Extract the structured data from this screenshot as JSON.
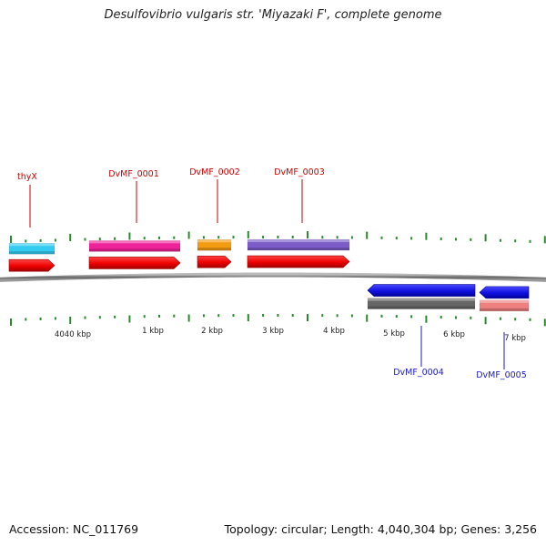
{
  "title": "Desulfovibrio vulgaris str. 'Miyazaki F', complete genome",
  "footer": {
    "accession": "Accession: NC_011769",
    "summary": "Topology: circular; Length: 4,040,304 bp; Genes: 3,256"
  },
  "scale": {
    "start_label": "4040 kbp",
    "ticks": [
      {
        "label": "1 kbp"
      },
      {
        "label": "2 kbp"
      },
      {
        "label": "3 kbp"
      },
      {
        "label": "4 kbp"
      },
      {
        "label": "5 kbp"
      },
      {
        "label": "6 kbp"
      },
      {
        "label": "7 kbp"
      }
    ]
  },
  "genes": [
    {
      "name": "thyX",
      "strand": "+",
      "label_color": "#cc0000",
      "track_color": "#33ccf0"
    },
    {
      "name": "DvMF_0001",
      "strand": "+",
      "label_color": "#cc0000",
      "track_color": "#ee2299"
    },
    {
      "name": "DvMF_0002",
      "strand": "+",
      "label_color": "#cc0000",
      "track_color": "#f39c12"
    },
    {
      "name": "DvMF_0003",
      "strand": "+",
      "label_color": "#cc0000",
      "track_color": "#7c5cc8"
    },
    {
      "name": "DvMF_0004",
      "strand": "-",
      "label_color": "#1a1acc",
      "track_color": "#666666"
    },
    {
      "name": "DvMF_0005",
      "strand": "-",
      "label_color": "#1a1acc",
      "track_color": "#ee8080"
    }
  ],
  "colors": {
    "forward_gene": "#ee1111",
    "reverse_gene": "#1111dd",
    "backbone": "#777777",
    "ticks": "#2a8a2a"
  }
}
